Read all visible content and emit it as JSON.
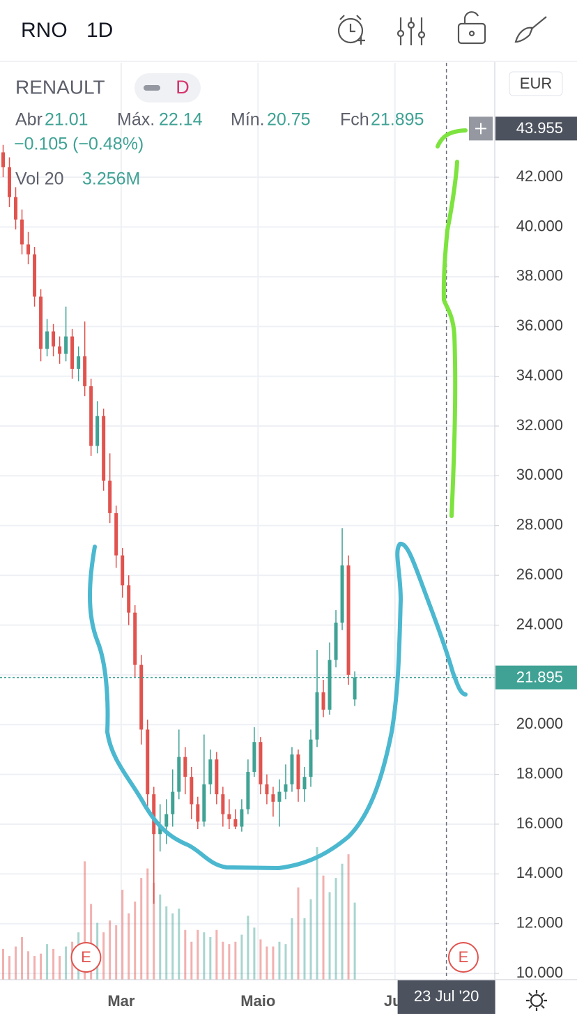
{
  "chart_data": {
    "type": "candlestick",
    "symbol": "RNO",
    "interval": "1D",
    "name": "RENAULT",
    "badge": "D",
    "currency": "EUR",
    "legend_labels": {
      "open": "Abr",
      "high": "Máx.",
      "low": "Mín.",
      "close": "Fch"
    },
    "change_label": "−0.105 (−0.48%)",
    "volume_label": "Vol 20",
    "volume_value_label": "3.256M",
    "open": [
      43.0,
      42.4,
      41.2,
      40.3,
      39.3,
      38.9,
      37.2,
      35.1,
      35.8,
      35.2,
      34.9,
      35.6,
      34.3,
      34.8,
      33.6,
      31.2,
      32.4,
      29.8,
      28.5,
      26.8,
      25.6,
      24.5,
      22.4,
      19.8,
      17.2,
      15.6,
      15.9,
      16.4,
      17.3,
      18.7,
      17.9,
      16.8,
      16.1,
      17.6,
      18.6,
      17.2,
      16.4,
      16.2,
      15.9,
      16.6,
      18.1,
      19.3,
      17.6,
      17.2,
      16.9,
      17.3,
      17.6,
      18.8,
      17.4,
      17.9,
      19.4,
      21.3,
      20.6,
      22.6,
      24.1,
      26.4,
      21.01
    ],
    "high": [
      43.3,
      42.8,
      41.6,
      40.7,
      39.8,
      39.2,
      37.5,
      36.3,
      36.1,
      35.6,
      36.8,
      35.9,
      35.2,
      36.2,
      33.9,
      33.0,
      32.7,
      30.9,
      28.8,
      27.1,
      26.0,
      24.8,
      22.8,
      20.2,
      17.5,
      16.8,
      17.0,
      18.2,
      19.8,
      19.1,
      18.3,
      17.1,
      19.6,
      19.0,
      18.9,
      17.5,
      17.0,
      16.6,
      17.0,
      18.6,
      19.9,
      19.5,
      18.0,
      17.5,
      17.8,
      18.4,
      19.1,
      19.0,
      18.3,
      19.8,
      23.0,
      21.8,
      23.3,
      24.6,
      27.9,
      26.8,
      22.14
    ],
    "low": [
      42.0,
      40.8,
      39.9,
      38.9,
      38.5,
      36.8,
      34.6,
      34.8,
      34.8,
      34.5,
      34.6,
      33.9,
      33.8,
      33.2,
      30.8,
      30.9,
      29.4,
      28.1,
      26.3,
      25.1,
      24.0,
      21.9,
      19.2,
      16.6,
      12.8,
      14.9,
      15.2,
      15.9,
      17.0,
      17.2,
      16.2,
      15.8,
      15.9,
      17.2,
      16.8,
      15.9,
      15.8,
      15.8,
      15.7,
      16.4,
      17.9,
      17.2,
      16.8,
      16.3,
      15.9,
      17.0,
      17.3,
      16.9,
      16.9,
      17.5,
      19.1,
      20.3,
      20.4,
      22.3,
      23.8,
      21.6,
      20.75
    ],
    "close": [
      42.4,
      41.2,
      40.3,
      39.3,
      38.9,
      37.2,
      35.1,
      35.8,
      35.2,
      34.9,
      35.6,
      34.3,
      34.8,
      33.6,
      31.2,
      32.4,
      29.8,
      28.5,
      26.8,
      25.6,
      24.5,
      22.4,
      19.8,
      17.2,
      15.6,
      15.9,
      16.4,
      17.3,
      18.7,
      17.9,
      16.8,
      16.1,
      17.6,
      18.6,
      17.2,
      16.4,
      16.2,
      15.9,
      16.6,
      18.1,
      19.3,
      17.6,
      17.2,
      16.9,
      17.3,
      17.6,
      18.8,
      17.4,
      17.9,
      19.4,
      21.3,
      20.6,
      22.6,
      24.1,
      26.4,
      22.0,
      21.895
    ],
    "volume": [
      1.3,
      1.0,
      1.4,
      1.8,
      1.2,
      1.0,
      1.1,
      1.5,
      1.3,
      1.0,
      1.4,
      1.6,
      2.0,
      5.0,
      3.2,
      2.4,
      2.0,
      2.5,
      2.3,
      3.8,
      2.8,
      3.3,
      4.3,
      4.7,
      4.1,
      3.6,
      3.1,
      2.8,
      3.0,
      2.1,
      1.6,
      2.1,
      2.0,
      1.8,
      2.1,
      1.6,
      1.5,
      1.6,
      1.9,
      2.7,
      2.2,
      1.7,
      1.4,
      1.4,
      1.6,
      1.5,
      2.6,
      3.9,
      2.6,
      3.4,
      5.6,
      4.4,
      3.7,
      4.3,
      4.9,
      5.3,
      3.256
    ],
    "up_color": "#3fa294",
    "down_color": "#e0534e",
    "xlim": [
      -0.5,
      78.3
    ],
    "ylim": [
      9.75,
      46.6
    ],
    "xticks": [
      {
        "value": 18.8,
        "label": "Mar"
      },
      {
        "value": 40.6,
        "label": "Maio"
      },
      {
        "value": 62.4,
        "label": "Jul"
      }
    ],
    "yticks": [
      {
        "value": 10,
        "label": "10.000"
      },
      {
        "value": 12,
        "label": "12.000"
      },
      {
        "value": 14,
        "label": "14.000"
      },
      {
        "value": 16,
        "label": "16.000"
      },
      {
        "value": 18,
        "label": "18.000"
      },
      {
        "value": 20,
        "label": "20.000"
      },
      {
        "value": 22,
        "label": "22.000"
      },
      {
        "value": 24,
        "label": "24.000"
      },
      {
        "value": 26,
        "label": "26.000"
      },
      {
        "value": 28,
        "label": "28.000"
      },
      {
        "value": 30,
        "label": "30.000"
      },
      {
        "value": 32,
        "label": "32.000"
      },
      {
        "value": 34,
        "label": "34.000"
      },
      {
        "value": 36,
        "label": "36.000"
      },
      {
        "value": 38,
        "label": "38.000"
      },
      {
        "value": 40,
        "label": "40.000"
      },
      {
        "value": 42,
        "label": "42.000"
      }
    ],
    "grid": true,
    "events": [
      {
        "value": 13.2,
        "label": "E"
      },
      {
        "value": 73.3,
        "label": "E"
      }
    ],
    "crosshair": {
      "x": 70.6,
      "x_label": "23 Jul '20",
      "y": 43.955
    }
  }
}
